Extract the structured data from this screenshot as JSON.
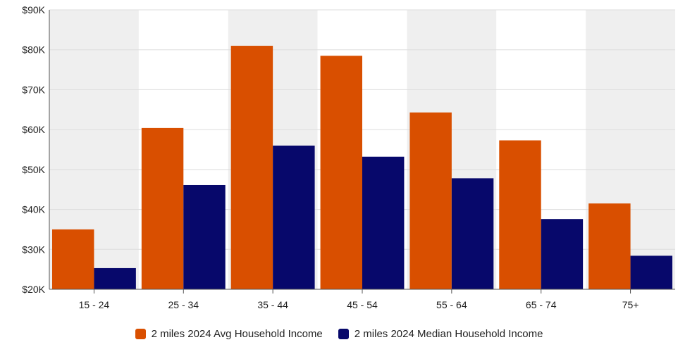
{
  "chart_data": {
    "type": "bar",
    "categories": [
      "15 - 24",
      "25 - 34",
      "35 - 44",
      "45 - 54",
      "55 - 64",
      "65 - 74",
      "75+"
    ],
    "series": [
      {
        "name": "2 miles 2024 Avg Household Income",
        "color": "#d94f00",
        "values": [
          35000,
          60400,
          81000,
          78500,
          64300,
          57300,
          41500
        ]
      },
      {
        "name": "2 miles 2024 Median Household Income",
        "color": "#07086b",
        "values": [
          25300,
          46100,
          56000,
          53200,
          47800,
          37600,
          28400
        ]
      }
    ],
    "yticks": [
      "$20K",
      "$30K",
      "$40K",
      "$50K",
      "$60K",
      "$70K",
      "$80K",
      "$90K"
    ],
    "ylim": [
      20000,
      90000
    ],
    "grid": true,
    "band_colors": [
      "#efefef",
      "#ffffff"
    ],
    "legend": "bottom"
  }
}
